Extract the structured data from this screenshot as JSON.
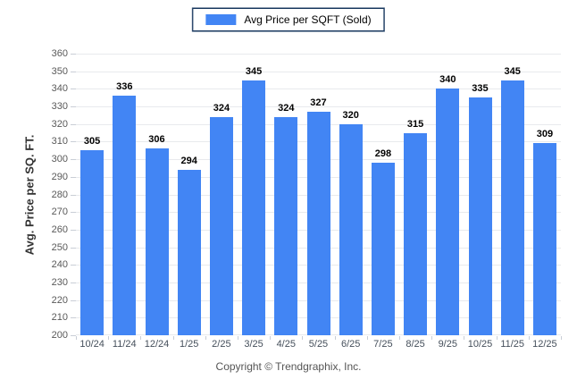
{
  "page": {
    "copyright": "Copyright © Trendgraphix, Inc."
  },
  "legend": {
    "label": "Avg Price per SQFT (Sold)",
    "swatch_color": "#4285f4",
    "border_color": "#17375e"
  },
  "colors": {
    "bar": "#4285f4",
    "grid": "#e8eaed",
    "tick": "#c9ced6",
    "y_label_text": "#595959",
    "x_label_text": "#454f5b",
    "value_label_text": "#000000"
  },
  "chart_data": {
    "type": "bar",
    "title": "",
    "xlabel": "",
    "ylabel": "Avg. Price per SQ. FT.",
    "ylim": [
      200,
      360
    ],
    "ytick_step": 10,
    "grid": true,
    "legend_position": "top-center",
    "series_name": "Avg Price per SQFT (Sold)",
    "categories": [
      "10/24",
      "11/24",
      "12/24",
      "1/25",
      "2/25",
      "3/25",
      "4/25",
      "5/25",
      "6/25",
      "7/25",
      "8/25",
      "9/25",
      "10/25",
      "11/25",
      "12/25"
    ],
    "values": [
      305,
      336,
      306,
      294,
      324,
      345,
      324,
      327,
      320,
      298,
      315,
      340,
      335,
      345,
      309
    ]
  }
}
